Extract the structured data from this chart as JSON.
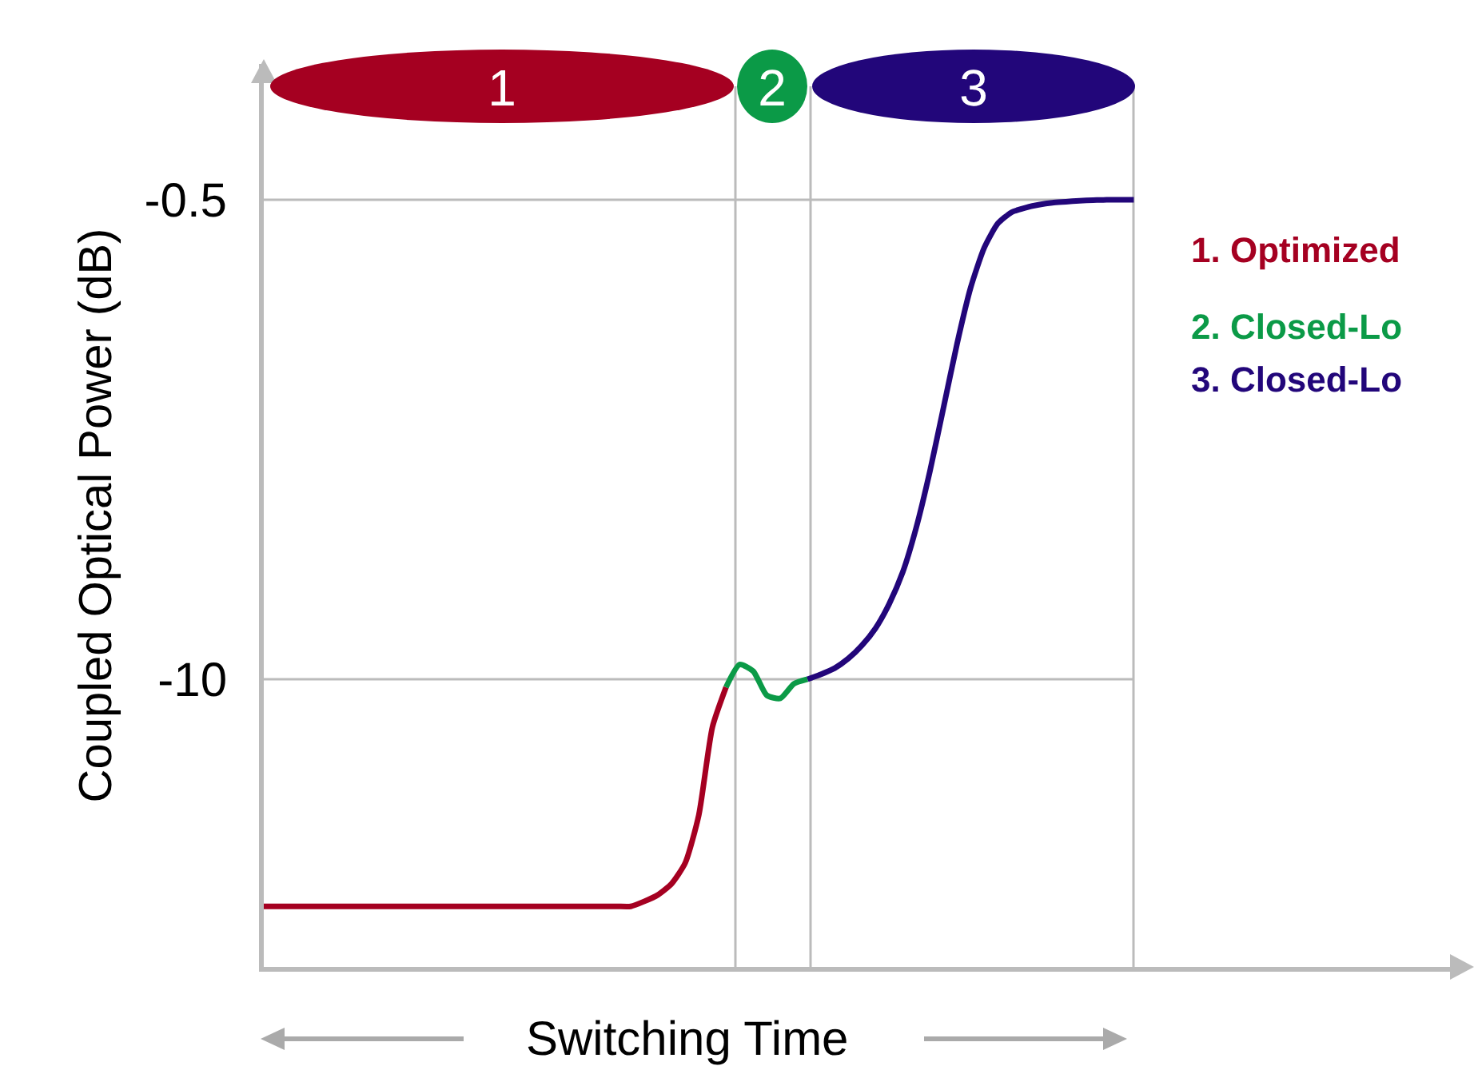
{
  "chart_data": {
    "type": "line",
    "xlabel": "Switching Time",
    "ylabel": "Coupled Optical Power (dB)",
    "categories": [
      null,
      null,
      null,
      null,
      null,
      null,
      null,
      null,
      null,
      null,
      null,
      null,
      null,
      null,
      null,
      null,
      null,
      null,
      null,
      null,
      null,
      null,
      null,
      null,
      null,
      null,
      null,
      null,
      null,
      null,
      null,
      null,
      null,
      null,
      null,
      null,
      null,
      null,
      null,
      null,
      null,
      null,
      null,
      null,
      null,
      null,
      null,
      null,
      null,
      null,
      null,
      null,
      null,
      null,
      null,
      null,
      null,
      null,
      null,
      null,
      null,
      null,
      null,
      null,
      null
    ],
    "series": [
      {
        "name": "1. Optimized",
        "color": "#a50021",
        "values": [
          -14.5,
          -14.5,
          -14.5,
          -14.5,
          -14.5,
          -14.5,
          -14.5,
          -14.5,
          -14.5,
          -14.5,
          -14.5,
          -14.5,
          -14.5,
          -14.5,
          -14.5,
          -14.5,
          -14.5,
          -14.5,
          -14.5,
          -14.5,
          -14.5,
          -14.5,
          -14.5,
          -14.5,
          -14.5,
          -14.5,
          -14.5,
          -14.5,
          -14.4,
          -14.27,
          -14.05,
          -13.64,
          -12.69,
          -10.95,
          -10.16,
          null,
          null,
          null,
          null,
          null,
          null,
          null,
          null,
          null,
          null,
          null,
          null,
          null,
          null,
          null,
          null,
          null,
          null,
          null,
          null,
          null,
          null,
          null,
          null,
          null,
          null,
          null,
          null,
          null,
          null
        ]
      },
      {
        "name": "2. Closed-Lo",
        "color": "#0b9a47",
        "values": [
          null,
          null,
          null,
          null,
          null,
          null,
          null,
          null,
          null,
          null,
          null,
          null,
          null,
          null,
          null,
          null,
          null,
          null,
          null,
          null,
          null,
          null,
          null,
          null,
          null,
          null,
          null,
          null,
          null,
          null,
          null,
          null,
          null,
          null,
          -10.16,
          -9.71,
          -9.84,
          -10.32,
          -10.38,
          -10.09,
          -10.0,
          null,
          null,
          null,
          null,
          null,
          null,
          null,
          null,
          null,
          null,
          null,
          null,
          null,
          null,
          null,
          null,
          null,
          null,
          null,
          null,
          null,
          null,
          null,
          null
        ]
      },
      {
        "name": "3. Closed-Lo",
        "color": "#22067a",
        "values": [
          null,
          null,
          null,
          null,
          null,
          null,
          null,
          null,
          null,
          null,
          null,
          null,
          null,
          null,
          null,
          null,
          null,
          null,
          null,
          null,
          null,
          null,
          null,
          null,
          null,
          null,
          null,
          null,
          null,
          null,
          null,
          null,
          null,
          null,
          null,
          null,
          null,
          null,
          null,
          null,
          -10.0,
          -9.9,
          -9.78,
          -9.59,
          -9.33,
          -8.99,
          -8.51,
          -7.88,
          -6.99,
          -5.88,
          -4.62,
          -3.35,
          -2.24,
          -1.45,
          -0.97,
          -0.75,
          -0.66,
          -0.6,
          -0.56,
          -0.54,
          -0.52,
          -0.51,
          -0.5,
          -0.5,
          -0.5
        ]
      }
    ],
    "annotations": [
      "1",
      "2",
      "3"
    ],
    "ylim": [
      -15.7,
      2.19
    ],
    "yticks": [
      -0.5,
      -10
    ],
    "grid": "y",
    "legend": "right",
    "tick_labels": "y",
    "marker": "none",
    "line_style": "solid"
  }
}
